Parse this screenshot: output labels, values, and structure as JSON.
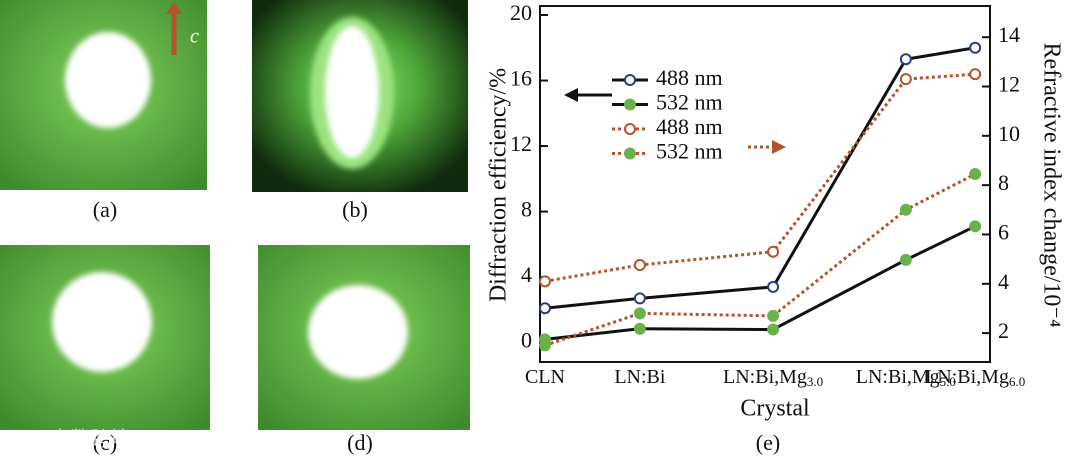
{
  "panels": [
    {
      "label": "(a)",
      "annotation": "c"
    },
    {
      "label": "(b)"
    },
    {
      "label": "(c)"
    },
    {
      "label": "(d)"
    }
  ],
  "watermark": "大数跨境",
  "chart_data": {
    "type": "line",
    "label": "(e)",
    "xlabel": "Crystal",
    "ylabel": "Diffraction efficiency/%",
    "y2label": "Refractive index change/10⁻⁴",
    "categories": [
      "CLN",
      "LN:Bi",
      "LN:Bi,Mg",
      "LN:Bi,Mg",
      "LN:Bi,Mg"
    ],
    "category_subscripts": [
      null,
      null,
      "3.0",
      "5.0",
      "6.0"
    ],
    "ylim": [
      -1,
      20
    ],
    "yticks": [
      0,
      4,
      8,
      12,
      16,
      20
    ],
    "y2lim": [
      0.95,
      14.9
    ],
    "y2ticks": [
      2,
      4,
      6,
      8,
      10,
      12,
      14
    ],
    "series": [
      {
        "name": "488 nm",
        "color": "#2b3a8c",
        "line_color": "#111111",
        "line_style": "solid",
        "marker": "open",
        "values": [
          2.1,
          2.7,
          3.4,
          17.3,
          18.0
        ]
      },
      {
        "name": "532 nm",
        "color": "#6ab04c",
        "line_color": "#111111",
        "line_style": "solid",
        "marker": "filled",
        "values": [
          0.2,
          0.85,
          0.8,
          5.05,
          7.1
        ]
      },
      {
        "name": "488 nm",
        "color": "#b5532c",
        "line_color": "#b5532c",
        "line_style": "dotted",
        "marker": "open",
        "axis": "y2",
        "values": [
          4.1,
          4.76,
          5.3,
          12.3,
          12.5
        ]
      },
      {
        "name": "532 nm",
        "color": "#6ab04c",
        "line_color": "#b5532c",
        "line_style": "dotted",
        "marker": "filled",
        "axis": "y2",
        "values": [
          1.5,
          2.8,
          2.7,
          7.0,
          8.45
        ]
      }
    ]
  }
}
